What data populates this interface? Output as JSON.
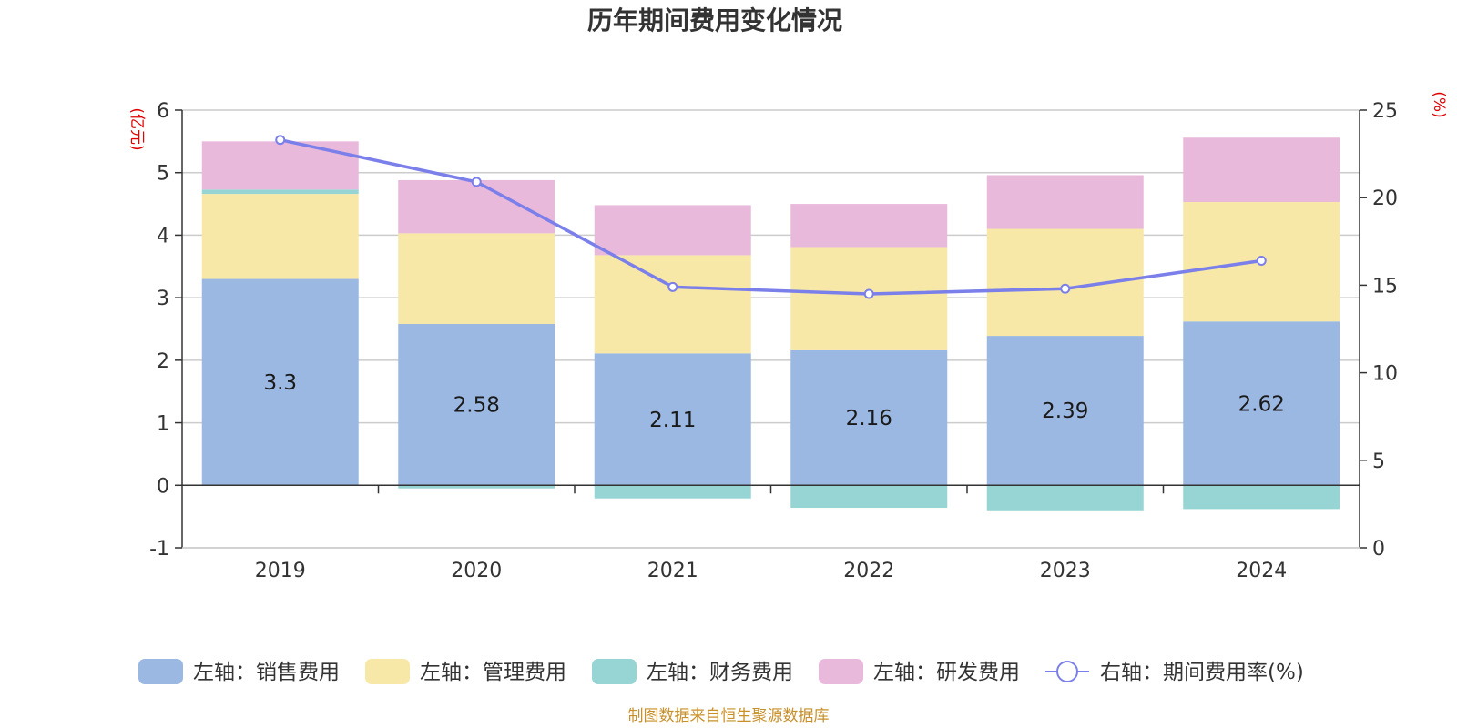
{
  "chart_data": {
    "type": "bar",
    "stacked": true,
    "title": "历年期间费用变化情况",
    "categories": [
      "2019",
      "2020",
      "2021",
      "2022",
      "2023",
      "2024"
    ],
    "left_axis": {
      "unit": "(亿元)",
      "ylim": [
        -1,
        6
      ],
      "ticks": [
        -1,
        0,
        1,
        2,
        3,
        4,
        5,
        6
      ]
    },
    "right_axis": {
      "unit": "(%)",
      "ylim": [
        0,
        25
      ],
      "ticks": [
        0,
        5,
        10,
        15,
        20,
        25
      ]
    },
    "grid": true,
    "legend_position": "bottom",
    "series": [
      {
        "name": "左轴：销售费用",
        "axis": "left",
        "color": "#9bb8e2",
        "values": [
          3.3,
          2.58,
          2.11,
          2.16,
          2.39,
          2.62
        ],
        "labels": [
          "3.3",
          "2.58",
          "2.11",
          "2.16",
          "2.39",
          "2.62"
        ]
      },
      {
        "name": "左轴：管理费用",
        "axis": "left",
        "color": "#f8e8a8",
        "values": [
          1.36,
          1.45,
          1.57,
          1.65,
          1.71,
          1.91
        ]
      },
      {
        "name": "左轴：财务费用",
        "axis": "left",
        "color": "#97d4d4",
        "values": [
          0.07,
          -0.05,
          -0.21,
          -0.36,
          -0.4,
          -0.38
        ]
      },
      {
        "name": "左轴：研发费用",
        "axis": "left",
        "color": "#e8b9da",
        "values": [
          0.77,
          0.85,
          0.8,
          0.69,
          0.86,
          1.03
        ]
      },
      {
        "name": "右轴：期间费用率(%)",
        "axis": "right",
        "type": "line",
        "color": "#7b7fea",
        "values": [
          23.3,
          20.9,
          14.9,
          14.5,
          14.8,
          16.4
        ]
      }
    ],
    "source": "制图数据来自恒生聚源数据库"
  }
}
